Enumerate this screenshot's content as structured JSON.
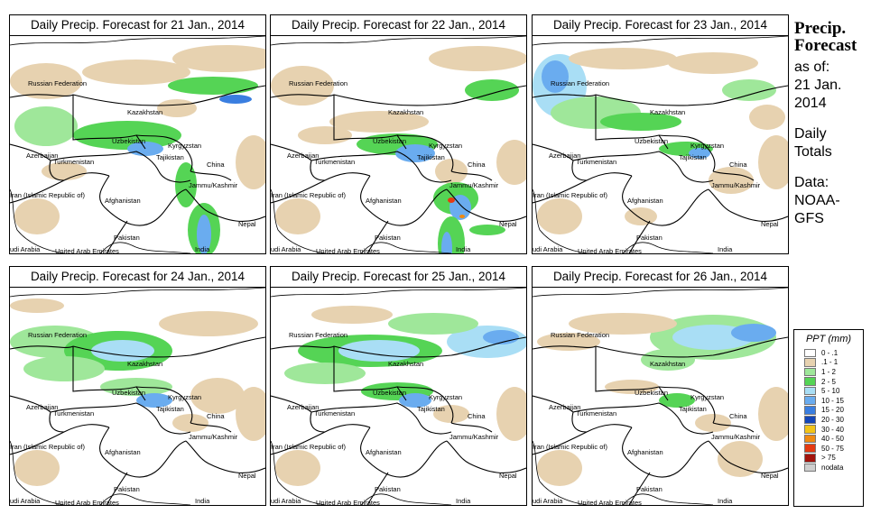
{
  "panels": [
    {
      "title": "Daily Precip. Forecast for  21 Jan., 2014"
    },
    {
      "title": "Daily Precip. Forecast for  22 Jan., 2014"
    },
    {
      "title": "Daily Precip. Forecast for  23 Jan., 2014"
    },
    {
      "title": "Daily Precip. Forecast for  24 Jan., 2014"
    },
    {
      "title": "Daily Precip. Forecast for  25 Jan., 2014"
    },
    {
      "title": "Daily Precip. Forecast for  26 Jan., 2014"
    }
  ],
  "map_labels": {
    "russia": "Russian Federation",
    "kazakhstan": "Kazakhstan",
    "uzbekistan": "Uzbekistan",
    "kyrgyzstan": "Kyrgyzstan",
    "tajikistan": "Tajikistan",
    "azerbaijan": "Azerbaijan",
    "turkmenistan": "Turkmenistan",
    "china": "China",
    "jammu": "Jammu/Kashmir",
    "iran": "Iran  (Islamic Republic of)",
    "afghanistan": "Afghanistan",
    "nepal": "Nepal",
    "pakistan": "Pakistan",
    "saudi": "udi Arabia",
    "uae": "United Arab Emirates",
    "india": "India"
  },
  "side": {
    "title_line1": "Precip.",
    "title_line2": "Forecast",
    "as_of": "as of:",
    "date_line1": "21 Jan.",
    "date_line2": "2014",
    "daily_line1": "Daily",
    "daily_line2": "Totals",
    "data_line1": "Data:",
    "data_line2": "NOAA-",
    "data_line3": "GFS"
  },
  "legend": {
    "title": "PPT (mm)",
    "items": [
      {
        "label": "0 - .1",
        "color": "#ffffff"
      },
      {
        "label": ".1 - 1",
        "color": "#e7d2b0"
      },
      {
        "label": "1 - 2",
        "color": "#9fe79a"
      },
      {
        "label": "2 - 5",
        "color": "#55d455"
      },
      {
        "label": "5 - 10",
        "color": "#a9def5"
      },
      {
        "label": "10 - 15",
        "color": "#6aacef"
      },
      {
        "label": "15 - 20",
        "color": "#3a7ee0"
      },
      {
        "label": "20 - 30",
        "color": "#1446b8"
      },
      {
        "label": "30 - 40",
        "color": "#f2c418"
      },
      {
        "label": "40 - 50",
        "color": "#f08a12"
      },
      {
        "label": "50 - 75",
        "color": "#e53a12"
      },
      {
        "label": "> 75",
        "color": "#a3140d"
      },
      {
        "label": "nodata",
        "color": "#cfcfcf"
      }
    ]
  }
}
